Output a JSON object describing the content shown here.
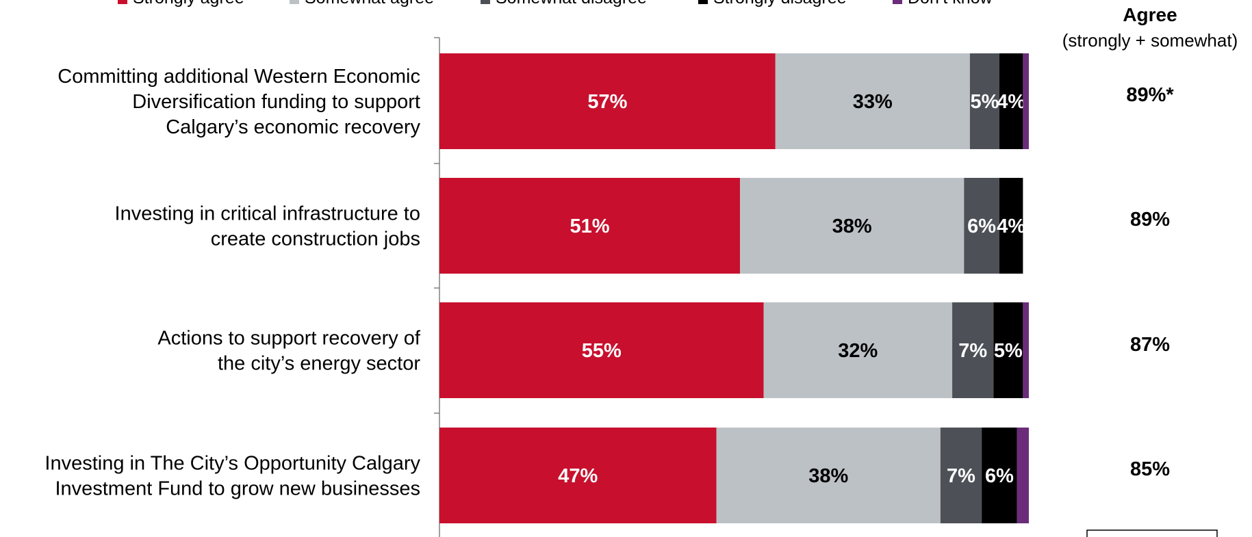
{
  "chart_data": {
    "type": "bar",
    "orientation": "horizontal",
    "stacked": true,
    "legend_position": "top",
    "xlim": [
      0,
      100
    ],
    "categories": [
      [
        "Committing additional Western Economic",
        "Diversification funding to support",
        "Calgary’s economic recovery"
      ],
      [
        "Investing in critical infrastructure to",
        "create construction jobs"
      ],
      [
        "Actions to support recovery of",
        "the city’s energy sector"
      ],
      [
        "Investing in The City’s Opportunity Calgary",
        "Investment Fund to grow new businesses"
      ]
    ],
    "series": [
      {
        "name": "Strongly agree",
        "color": "#c8102e",
        "label_color": "#ffffff",
        "values": [
          57,
          51,
          55,
          47
        ]
      },
      {
        "name": "Somewhat agree",
        "color": "#bcc1c6",
        "label_color": "#000000",
        "values": [
          33,
          38,
          32,
          38
        ]
      },
      {
        "name": "Somewhat disagree",
        "color": "#4d5157",
        "label_color": "#ffffff",
        "values": [
          5,
          6,
          7,
          7
        ]
      },
      {
        "name": "Strongly disagree",
        "color": "#000000",
        "label_color": "#ffffff",
        "values": [
          4,
          4,
          5,
          6
        ]
      },
      {
        "name": "Don’t know",
        "color": "#6b2c7a",
        "label_color": "#ffffff",
        "values": [
          1,
          0,
          1,
          2
        ]
      }
    ],
    "hidden_labels": [
      [
        false,
        false,
        false,
        false,
        true
      ],
      [
        false,
        false,
        false,
        false,
        true
      ],
      [
        false,
        false,
        false,
        false,
        true
      ],
      [
        false,
        false,
        false,
        false,
        true
      ]
    ],
    "agree_column": {
      "title": "Agree",
      "subtitle": "(strongly + somewhat)",
      "values": [
        "89%*",
        "89%",
        "87%",
        "85%"
      ]
    }
  }
}
